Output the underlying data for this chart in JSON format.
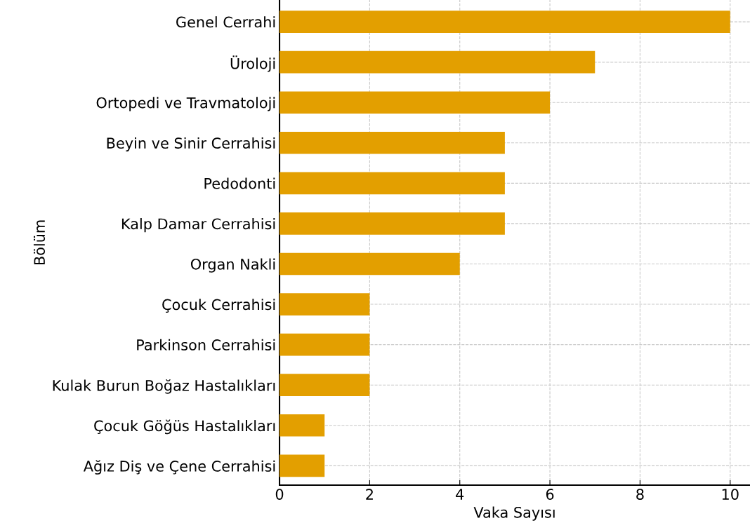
{
  "chart_data": {
    "type": "bar",
    "orientation": "horizontal",
    "xlabel": "Vaka Sayısı",
    "ylabel": "Bölüm",
    "categories": [
      "Genel Cerrahi",
      "Üroloji",
      "Ortopedi ve Travmatoloji",
      "Beyin ve Sinir Cerrahisi",
      "Pedodonti",
      "Kalp Damar Cerrahisi",
      "Organ Nakli",
      "Çocuk Cerrahisi",
      "Parkinson Cerrahisi",
      "Kulak Burun Boğaz Hastalıkları",
      "Çocuk Göğüs Hastalıkları",
      "Ağız Diş ve Çene Cerrahisi"
    ],
    "values": [
      10,
      7,
      6,
      5,
      5,
      5,
      4,
      2,
      2,
      2,
      1,
      1
    ],
    "color": "#e39f00",
    "xlim": [
      0,
      10.44
    ],
    "xticks": [
      0,
      2,
      4,
      6,
      8,
      10
    ],
    "grid": true
  }
}
